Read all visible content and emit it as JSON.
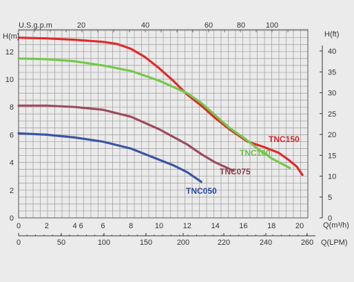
{
  "chart_data": {
    "type": "line",
    "axes": {
      "left": {
        "label": "H(m)",
        "range": [
          0,
          13.6
        ],
        "ticks": [
          "0",
          "2",
          "4",
          "6",
          "8",
          "10",
          "12"
        ]
      },
      "right": {
        "label": "H(ft)",
        "ticks": [
          "0",
          "5",
          "10",
          "15",
          "20",
          "25",
          "30",
          "35",
          "40"
        ]
      },
      "top": {
        "label": "U.S.g.p.m",
        "ticks": [
          "20",
          "40",
          "60",
          "80",
          "100"
        ]
      },
      "bottom_primary": {
        "label": "Q(m³/h)",
        "range": [
          0,
          22
        ],
        "ticks": [
          "0",
          "2",
          "4",
          "6",
          "8",
          "10",
          "12",
          "14",
          "16",
          "18",
          "20"
        ]
      },
      "bottom_secondary": {
        "label": "Q(LPM)",
        "ticks": [
          "0",
          "50",
          "100",
          "150",
          "200",
          "220",
          "240",
          "260"
        ]
      }
    },
    "grid": true,
    "series": [
      {
        "name": "TNC150",
        "color": "#e02a2a",
        "label_color": "#d42525",
        "points": [
          [
            0,
            13.0
          ],
          [
            2,
            12.95
          ],
          [
            4,
            12.85
          ],
          [
            6,
            12.7
          ],
          [
            7,
            12.55
          ],
          [
            8,
            12.2
          ],
          [
            9,
            11.6
          ],
          [
            10,
            10.8
          ],
          [
            11,
            9.9
          ],
          [
            12,
            8.9
          ],
          [
            13,
            8.1
          ],
          [
            14,
            7.2
          ],
          [
            15,
            6.4
          ],
          [
            16.3,
            5.5
          ],
          [
            17.5,
            5.1
          ],
          [
            18.5,
            4.7
          ],
          [
            19.2,
            4.2
          ],
          [
            19.8,
            3.7
          ],
          [
            20.2,
            3.1
          ]
        ]
      },
      {
        "name": "TNC100",
        "color": "#74c94a",
        "label_color": "#6cbd47",
        "points": [
          [
            0,
            11.5
          ],
          [
            2,
            11.45
          ],
          [
            4,
            11.3
          ],
          [
            6,
            11.0
          ],
          [
            8,
            10.6
          ],
          [
            10,
            9.9
          ],
          [
            12,
            9.0
          ],
          [
            13,
            8.3
          ],
          [
            14,
            7.4
          ],
          [
            15,
            6.5
          ],
          [
            16,
            5.8
          ],
          [
            17,
            5.0
          ],
          [
            18,
            4.3
          ],
          [
            19.3,
            3.6
          ]
        ]
      },
      {
        "name": "TNC075",
        "color": "#9e4a5e",
        "label_color": "#8b4050",
        "points": [
          [
            0,
            8.1
          ],
          [
            2,
            8.1
          ],
          [
            4,
            8.0
          ],
          [
            6,
            7.8
          ],
          [
            8,
            7.3
          ],
          [
            10,
            6.4
          ],
          [
            12,
            5.3
          ],
          [
            13,
            4.6
          ],
          [
            14,
            4.0
          ],
          [
            15.3,
            3.4
          ]
        ]
      },
      {
        "name": "TNC050",
        "color": "#3a55a4",
        "label_color": "#2e4a9c",
        "points": [
          [
            0,
            6.1
          ],
          [
            2,
            6.0
          ],
          [
            4,
            5.8
          ],
          [
            6,
            5.5
          ],
          [
            8,
            5.0
          ],
          [
            10,
            4.2
          ],
          [
            11,
            3.8
          ],
          [
            12,
            3.3
          ],
          [
            13,
            2.6
          ]
        ]
      }
    ]
  }
}
